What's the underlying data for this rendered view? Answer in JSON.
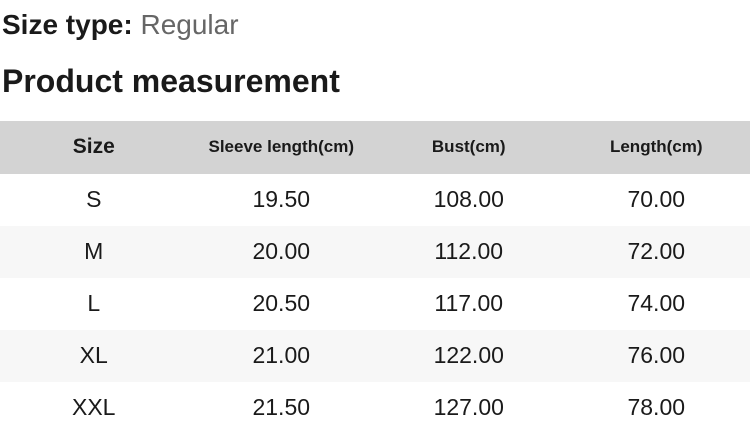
{
  "header": {
    "size_type_label": "Size type:",
    "size_type_value": "Regular",
    "section_title": "Product measurement"
  },
  "table": {
    "columns": [
      "Size",
      "Sleeve length(cm)",
      "Bust(cm)",
      "Length(cm)"
    ],
    "rows": [
      [
        "S",
        "19.50",
        "108.00",
        "70.00"
      ],
      [
        "M",
        "20.00",
        "112.00",
        "72.00"
      ],
      [
        "L",
        "20.50",
        "117.00",
        "74.00"
      ],
      [
        "XL",
        "21.00",
        "122.00",
        "76.00"
      ],
      [
        "XXL",
        "21.50",
        "127.00",
        "78.00"
      ]
    ]
  },
  "colors": {
    "header_row_bg": "#d3d3d3",
    "alt_row_bg": "#f7f7f7",
    "text": "#1a1a1a",
    "muted_text": "#666666",
    "page_bg": "#ffffff"
  }
}
